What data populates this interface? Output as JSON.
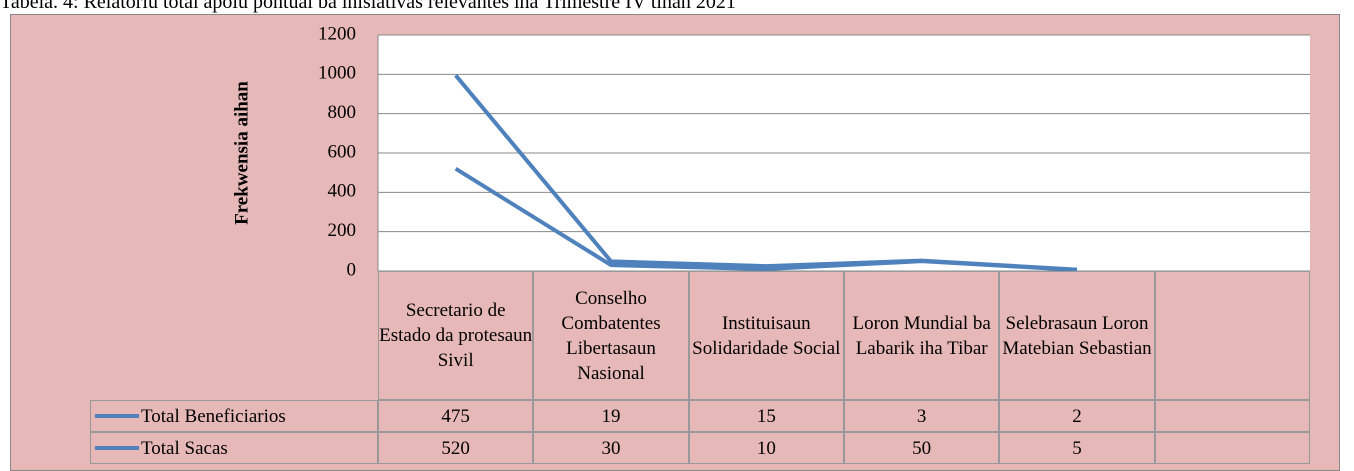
{
  "chart_data": {
    "type": "line",
    "stacked": true,
    "title": "Tabela. 4: Relatoriu total apoiu pontual ba inisiativas relevantes iha Trimestre IV tinan 2021",
    "y_label": "Frekwensia aihan",
    "categories": [
      "Secretario de Estado da protesaun Sivil",
      "Conselho Combatentes Libertasaun Nasional",
      "Instituisaun Solidaridade Social",
      "Loron Mundial ba Labarik iha Tibar",
      "Selebrasaun Loron Matebian Sebastian",
      null
    ],
    "series": [
      {
        "name": "Total Beneficiarios",
        "color": "#4f81bd",
        "values": [
          475,
          19,
          15,
          3,
          2,
          null
        ]
      },
      {
        "name": "Total Sacas",
        "color": "#4f81bd",
        "values": [
          520,
          30,
          10,
          50,
          5,
          null
        ]
      }
    ],
    "ylim": [
      0,
      1200
    ],
    "yticks": [
      0,
      200,
      400,
      600,
      800,
      1000,
      1200
    ],
    "grid": true
  }
}
